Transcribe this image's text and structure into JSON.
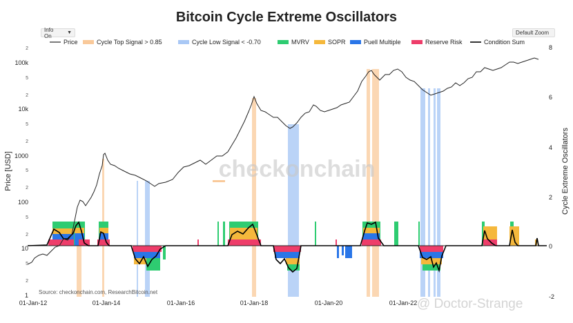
{
  "title": "Bitcoin Cycle Extreme Oscillators",
  "controls": {
    "info": "Info On",
    "zoom": "Default Zoom"
  },
  "source": "Source: checkonchain.com, ResearchBitcoin.net",
  "watermark": "checkonchain",
  "credit": "@ Doctor-Strange",
  "colors": {
    "price": "#222222",
    "top": "#f9c99a",
    "low": "#a9c8f5",
    "mvrv": "#2ecc71",
    "sopr": "#f5b83c",
    "puell": "#2a76e8",
    "reserve": "#ee3d6a",
    "sum": "#000000"
  },
  "chart_data": {
    "type": "line",
    "title": "Bitcoin Cycle Extreme Oscillators",
    "xlabel": "",
    "ylabel_left": "Price [USD]",
    "ylabel_right": "Cycle Extreme Oscillators",
    "x_ticks": [
      "01-Jan-12",
      "01-Jan-14",
      "01-Jan-16",
      "01-Jan-18",
      "01-Jan-20",
      "01-Jan-22"
    ],
    "y_left_scale": "log",
    "y_left_range": [
      1,
      200000
    ],
    "y_left_ticks": [
      "1",
      "2",
      "5",
      "10",
      "2",
      "5",
      "100",
      "2",
      "5",
      "1000",
      "2",
      "5",
      "10k",
      "2",
      "5",
      "100k",
      "2"
    ],
    "y_right_range": [
      -2,
      8
    ],
    "y_right_ticks": [
      "-2",
      "0",
      "2",
      "4",
      "6",
      "8"
    ],
    "legend": [
      "Price",
      "Cycle Top Signal > 0.85",
      "Cycle Low Signal < -0.70",
      "MVRV",
      "SOPR",
      "Puell Multiple",
      "Reserve Risk",
      "Condition Sum"
    ],
    "legend_position": "top",
    "grid": false,
    "series": [
      {
        "name": "Price",
        "axis": "left",
        "x": [
          "2012-01-01",
          "2012-06-01",
          "2013-01-01",
          "2013-04-01",
          "2013-07-01",
          "2013-12-01",
          "2014-06-01",
          "2015-01-01",
          "2015-08-01",
          "2016-06-01",
          "2017-01-01",
          "2017-06-01",
          "2017-12-17",
          "2018-06-01",
          "2018-12-15",
          "2019-06-26",
          "2020-03-12",
          "2020-09-01",
          "2021-04-14",
          "2021-07-20",
          "2021-11-10",
          "2022-06-18",
          "2022-11-21",
          "2023-06-01",
          "2024-03-14",
          "2024-08-05",
          "2025-01-20",
          "2025-05-01"
        ],
        "values": [
          5,
          6,
          13,
          150,
          90,
          1000,
          600,
          300,
          230,
          650,
          1000,
          2500,
          19000,
          6500,
          3400,
          12000,
          5500,
          11500,
          63000,
          30000,
          67000,
          19000,
          16000,
          27000,
          72000,
          55000,
          105000,
          95000
        ]
      },
      {
        "name": "Condition Sum",
        "axis": "right",
        "x": [
          "2012-01-01",
          "2013-01-01",
          "2013-04-01",
          "2013-07-01",
          "2013-12-01",
          "2014-03-01",
          "2015-01-01",
          "2015-06-01",
          "2016-06-01",
          "2017-06-01",
          "2017-12-17",
          "2018-04-01",
          "2018-12-15",
          "2019-03-01",
          "2020-06-01",
          "2021-03-01",
          "2021-05-01",
          "2021-07-01",
          "2021-11-01",
          "2022-06-18",
          "2022-11-21",
          "2023-03-01",
          "2024-03-14",
          "2024-07-01",
          "2024-12-01",
          "2025-04-01"
        ],
        "values": [
          0,
          0.2,
          0.7,
          0.1,
          0.7,
          0,
          -0.5,
          -0.6,
          0,
          0.3,
          0.8,
          0.1,
          -0.9,
          0,
          0,
          0.9,
          0.9,
          0.1,
          0.1,
          -0.6,
          -0.8,
          0,
          0.6,
          0.1,
          0.5,
          0
        ]
      }
    ],
    "cycle_top_signals": [
      "2013-04",
      "2013-12",
      "2017-12",
      "2021-04",
      "2021-11"
    ],
    "cycle_low_signals": [
      "2015-01",
      "2015-08",
      "2018-12",
      "2022-06",
      "2022-11"
    ]
  }
}
